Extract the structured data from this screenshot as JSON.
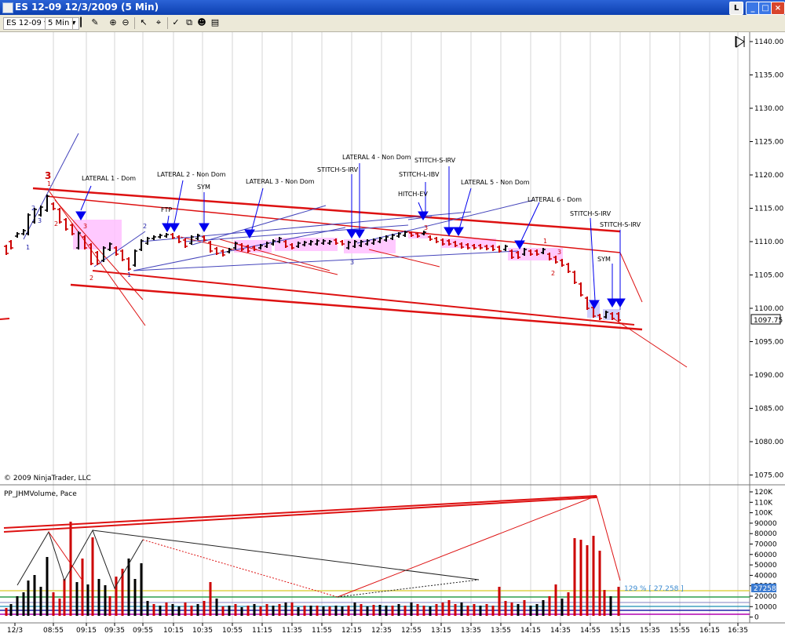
{
  "window": {
    "title": "ES 12-09  12/3/2009 (5 Min)",
    "buttons": [
      "L",
      "_",
      "□",
      "×"
    ]
  },
  "toolbar": {
    "instrument": "ES 12-09",
    "interval": "5 Min"
  },
  "price_panel": {
    "copyright": "© 2009 NinjaTrader, LLC",
    "price_ticks": [
      "1140.00",
      "1135.00",
      "1130.00",
      "1125.00",
      "1120.00",
      "1115.00",
      "1110.00",
      "1105.00",
      "1100.00",
      "1095.00",
      "1090.00",
      "1085.00",
      "1080.00",
      "1075.00"
    ],
    "last_price": "1097.75",
    "annotations": [
      {
        "text": "LATERAL 1 - Dom"
      },
      {
        "text": "LATERAL 2 - Non Dom"
      },
      {
        "text": "SYM"
      },
      {
        "text": "FTP"
      },
      {
        "text": "LATERAL 3 - Non Dom"
      },
      {
        "text": "STITCH-S-IRV"
      },
      {
        "text": "LATERAL 4 - Non Dom"
      },
      {
        "text": "STITCH-L-IBV"
      },
      {
        "text": "HITCH-EV"
      },
      {
        "text": "STITCH-S-IRV"
      },
      {
        "text": "LATERAL 5 - Non Dom"
      },
      {
        "text": "LATERAL 6 - Dom"
      },
      {
        "text": "STITCH-S-IRV"
      },
      {
        "text": "STITCH-S-IRV"
      },
      {
        "text": "SYM"
      }
    ]
  },
  "volume_panel": {
    "indicator": "PP_JHMVolume, Pace",
    "ticks": [
      "120K",
      "110K",
      "100K",
      "90000",
      "80000",
      "70000",
      "60000",
      "50000",
      "40000",
      "30000",
      "20000",
      "10000",
      "0"
    ],
    "last_volume": "27258",
    "pace_text": "129 % [ 27.258 ]"
  },
  "time_axis": {
    "labels": [
      "12/3",
      "08:55",
      "09:15",
      "09:35",
      "09:55",
      "10:15",
      "10:35",
      "10:55",
      "11:15",
      "11:35",
      "11:55",
      "12:15",
      "12:35",
      "12:55",
      "13:15",
      "13:35",
      "13:55",
      "14:15",
      "14:35",
      "14:55",
      "15:15",
      "15:35",
      "15:55",
      "16:15",
      "16:35"
    ]
  },
  "colors": {
    "up_bar": "#000000",
    "down_bar": "#cc0000",
    "trendline": "#dd1111",
    "annotation_line": "#4444bb",
    "arrow": "#0000ee",
    "lateral_fill": "#ffc0ff"
  }
}
